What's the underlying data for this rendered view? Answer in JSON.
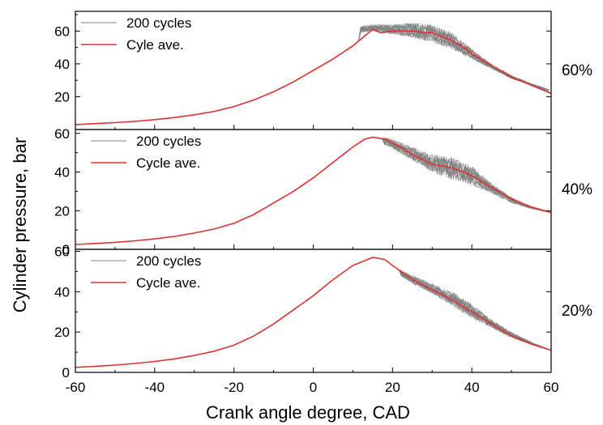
{
  "colors": {
    "cycles": "#808080",
    "average": "#e03030",
    "frame": "#000000"
  },
  "x_axis": {
    "title": "Crank angle degree, CAD",
    "range": [
      -60,
      60
    ],
    "ticks": [
      -60,
      -40,
      -20,
      0,
      20,
      40,
      60
    ],
    "tick_labels": [
      "-60",
      "-40",
      "-20",
      "0",
      "20",
      "40",
      "60"
    ]
  },
  "y_axis": {
    "title": "Cylinder pressure, bar"
  },
  "chart_data": [
    {
      "type": "line",
      "load_label": "60%",
      "ylim": [
        0,
        72
      ],
      "yticks": [
        20,
        40,
        60
      ],
      "ytick_labels": [
        "20",
        "40",
        "60"
      ],
      "legend": {
        "placement": "top-left",
        "entries": [
          "200 cycles",
          "Cyle ave."
        ]
      },
      "series": [
        {
          "name": "200 cycles",
          "band": {
            "x": [
              12,
              15,
              20,
              25,
              30,
              35,
              40,
              45,
              50,
              55,
              60
            ],
            "lower": [
              59,
              60,
              58,
              56,
              53,
              49,
              43,
              37,
              31,
              27,
              23
            ],
            "upper": [
              63,
              64,
              64,
              65,
              64,
              59,
              49,
              40,
              33,
              28,
              24
            ]
          }
        },
        {
          "name": "Cyle ave.",
          "x": [
            -60,
            -55,
            -50,
            -45,
            -40,
            -35,
            -30,
            -25,
            -20,
            -15,
            -10,
            -5,
            0,
            5,
            10,
            13,
            15,
            17,
            20,
            22,
            25,
            28,
            30,
            33,
            35,
            38,
            40,
            45,
            50,
            55,
            60
          ],
          "y": [
            3,
            3.6,
            4.2,
            5,
            6,
            7.3,
            9,
            11,
            14,
            18,
            23,
            29,
            36,
            43,
            51,
            57,
            61,
            59,
            60,
            60,
            60,
            59,
            59,
            56,
            54,
            50,
            46,
            39,
            32,
            27,
            22
          ]
        }
      ]
    },
    {
      "type": "line",
      "load_label": "40%",
      "ylim": [
        0,
        62
      ],
      "yticks": [
        0,
        20,
        40,
        60
      ],
      "ytick_labels": [
        "0",
        "20",
        "40",
        "60"
      ],
      "legend": {
        "placement": "top-left",
        "entries": [
          "200 cycles",
          "Cycle ave."
        ]
      },
      "series": [
        {
          "name": "200 cycles",
          "band": {
            "x": [
              18,
              20,
              25,
              30,
              35,
              40,
              45,
              50,
              55,
              60
            ],
            "lower": [
              54,
              52,
              46,
              40,
              36,
              33,
              29,
              24,
              21,
              19
            ],
            "upper": [
              58,
              57,
              53,
              49,
              48,
              43,
              34,
              27,
              22,
              19
            ]
          }
        },
        {
          "name": "Cycle ave.",
          "x": [
            -60,
            -55,
            -50,
            -45,
            -40,
            -35,
            -30,
            -25,
            -20,
            -15,
            -10,
            -5,
            0,
            5,
            10,
            13,
            15,
            18,
            20,
            22,
            25,
            28,
            30,
            33,
            35,
            38,
            40,
            45,
            50,
            55,
            60
          ],
          "y": [
            2.5,
            3,
            3.6,
            4.4,
            5.4,
            6.7,
            8.4,
            10.5,
            13.5,
            18,
            24,
            30,
            37,
            45,
            53,
            57,
            58,
            57,
            55,
            53,
            49,
            46,
            44,
            43,
            42,
            40,
            38,
            32,
            26,
            22,
            19
          ]
        }
      ]
    },
    {
      "type": "line",
      "load_label": "20%",
      "ylim": [
        0,
        61
      ],
      "yticks": [
        0,
        20,
        40,
        60
      ],
      "ytick_labels": [
        "0",
        "20",
        "40",
        "60"
      ],
      "legend": {
        "placement": "top-left",
        "entries": [
          "200 cycles",
          "Cycle ave."
        ]
      },
      "series": [
        {
          "name": "200 cycles",
          "band": {
            "x": [
              22,
              25,
              30,
              35,
              40,
              45,
              50,
              55,
              60
            ],
            "lower": [
              48,
              44,
              39,
              33,
              27,
              22,
              17,
              14,
              11
            ],
            "upper": [
              51,
              48,
              44,
              40,
              34,
              26,
              20,
              15,
              11
            ]
          }
        },
        {
          "name": "Cycle ave.",
          "x": [
            -60,
            -55,
            -50,
            -45,
            -40,
            -35,
            -30,
            -25,
            -20,
            -15,
            -10,
            -5,
            0,
            5,
            10,
            15,
            18,
            20,
            25,
            30,
            35,
            40,
            45,
            50,
            55,
            60
          ],
          "y": [
            2.5,
            3,
            3.6,
            4.4,
            5.4,
            6.7,
            8.4,
            10.5,
            13.5,
            18,
            24,
            31,
            38,
            46,
            53,
            57,
            56,
            53,
            46,
            41,
            36,
            30,
            24,
            18,
            14,
            11
          ]
        }
      ]
    }
  ]
}
